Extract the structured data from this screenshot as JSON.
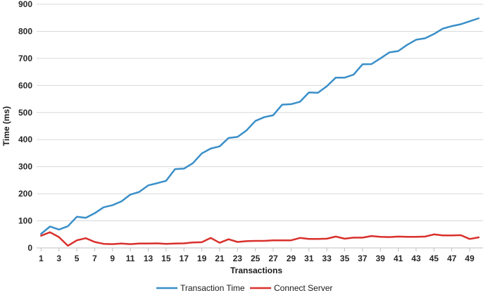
{
  "chart_data": {
    "type": "line",
    "xlabel": "Transactions",
    "ylabel": "Time (ms)",
    "x": [
      1,
      2,
      3,
      4,
      5,
      6,
      7,
      8,
      9,
      10,
      11,
      12,
      13,
      14,
      15,
      16,
      17,
      18,
      19,
      20,
      21,
      22,
      23,
      24,
      25,
      26,
      27,
      28,
      29,
      30,
      31,
      32,
      33,
      34,
      35,
      36,
      37,
      38,
      39,
      40,
      41,
      42,
      43,
      44,
      45,
      46,
      47,
      48,
      49,
      50
    ],
    "x_tick_labels": [
      "1",
      "3",
      "5",
      "7",
      "9",
      "11",
      "13",
      "15",
      "17",
      "19",
      "21",
      "23",
      "25",
      "27",
      "29",
      "31",
      "33",
      "35",
      "37",
      "39",
      "41",
      "43",
      "45",
      "47",
      "49"
    ],
    "ylim": [
      0,
      900
    ],
    "y_ticks": [
      0,
      100,
      200,
      300,
      400,
      500,
      600,
      700,
      800,
      900
    ],
    "grid": true,
    "legend_position": "bottom",
    "series": [
      {
        "name": "Transaction Time",
        "color": "#3a8fc8",
        "values": [
          52,
          79,
          68,
          80,
          115,
          111,
          128,
          150,
          158,
          172,
          197,
          207,
          231,
          239,
          248,
          291,
          293,
          313,
          349,
          367,
          375,
          406,
          410,
          434,
          469,
          483,
          490,
          529,
          531,
          540,
          574,
          573,
          597,
          629,
          629,
          640,
          678,
          679,
          700,
          722,
          727,
          750,
          769,
          774,
          790,
          810,
          819,
          826,
          837,
          848
        ]
      },
      {
        "name": "Connect Server",
        "color": "#d9302c",
        "values": [
          45,
          58,
          40,
          8,
          28,
          36,
          22,
          15,
          14,
          16,
          14,
          16,
          16,
          17,
          15,
          16,
          17,
          20,
          21,
          37,
          19,
          32,
          22,
          25,
          26,
          26,
          28,
          28,
          28,
          37,
          33,
          33,
          34,
          42,
          34,
          38,
          38,
          44,
          41,
          40,
          42,
          41,
          41,
          42,
          50,
          46,
          46,
          47,
          33,
          39
        ]
      }
    ]
  }
}
